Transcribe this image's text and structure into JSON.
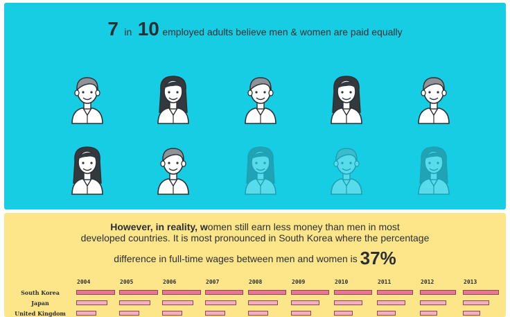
{
  "headline": {
    "number_a": "7",
    "in_word": "in",
    "number_b": "10",
    "text": "employed adults believe men & women are paid equally"
  },
  "figures": [
    {
      "icon": "man-icon",
      "faded": false
    },
    {
      "icon": "woman-icon",
      "faded": false
    },
    {
      "icon": "man-icon",
      "faded": false
    },
    {
      "icon": "woman-icon",
      "faded": false
    },
    {
      "icon": "man-icon",
      "faded": false
    },
    {
      "icon": "woman-icon",
      "faded": false
    },
    {
      "icon": "man-icon",
      "faded": false
    },
    {
      "icon": "woman-icon",
      "faded": true
    },
    {
      "icon": "man-icon",
      "faded": true
    },
    {
      "icon": "woman-icon",
      "faded": true
    }
  ],
  "reality": {
    "lead_bold": "However, in reality, w",
    "line1_rest": "omen still earn less money than men in most",
    "line2": "developed countries. It is most pronounced in South Korea where the percentage",
    "line3": "difference in full-time wages between men and women is",
    "percent": "37%"
  },
  "chart_data": {
    "type": "bar",
    "categories": [
      "2004",
      "2005",
      "2006",
      "2007",
      "2008",
      "2009",
      "2010",
      "2011",
      "2012",
      "2013"
    ],
    "series": [
      {
        "name": "South Korea",
        "values": [
          40,
          40,
          40,
          39,
          39,
          39,
          39,
          37,
          37,
          37
        ]
      },
      {
        "name": "Japan",
        "values": [
          32,
          32,
          32,
          32,
          31,
          29,
          29,
          29,
          27,
          27
        ]
      },
      {
        "name": "United Kingdom",
        "values": [
          21,
          21,
          21,
          21,
          21,
          21,
          19,
          19,
          18,
          18
        ]
      }
    ],
    "title": "",
    "xlabel": "",
    "ylabel": "",
    "ylim": [
      0,
      40
    ]
  },
  "colors": {
    "top_bg": "#17cde4",
    "bottom_bg": "#fde58a",
    "bar_korea": "#e87592",
    "bar_light": "#f4aebe",
    "ink": "#2b2f33"
  }
}
